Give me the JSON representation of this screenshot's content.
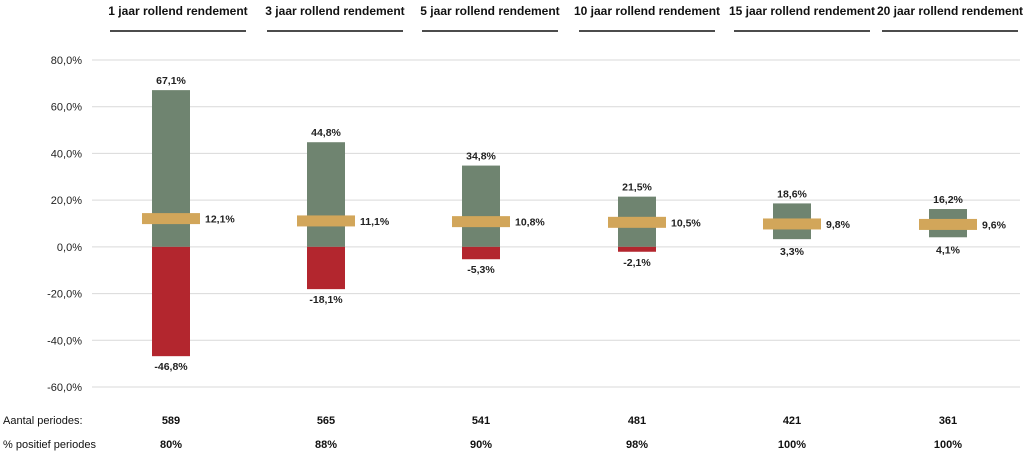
{
  "chart_data": {
    "type": "bar",
    "categories": [
      "1 jaar rollend rendement",
      "3 jaar rollend rendement",
      "5 jaar rollend rendement",
      "10 jaar rollend rendement",
      "15 jaar rollend rendement",
      "20 jaar rollend rendement"
    ],
    "series": [
      {
        "values": [
          67.1,
          44.8,
          34.8,
          21.5,
          18.6,
          16.2
        ],
        "labels": [
          "67,1%",
          "44,8%",
          "34,8%",
          "21,5%",
          "18,6%",
          "16,2%"
        ]
      },
      {
        "values": [
          -46.8,
          -18.1,
          -5.3,
          -2.1,
          3.3,
          4.1
        ],
        "labels": [
          "-46,8%",
          "-18,1%",
          "-5,3%",
          "-2,1%",
          "3,3%",
          "4,1%"
        ]
      },
      {
        "values": [
          12.1,
          11.1,
          10.8,
          10.5,
          9.8,
          9.6
        ],
        "labels": [
          "12,1%",
          "11,1%",
          "10,8%",
          "10,5%",
          "9,8%",
          "9,6%"
        ]
      }
    ],
    "ylim": [
      -60,
      80
    ],
    "yticks": [
      80,
      60,
      40,
      20,
      0,
      -20,
      -40,
      -60
    ],
    "ytick_labels": [
      "80,0%",
      "60,0%",
      "40,0%",
      "20,0%",
      "0,0%",
      "-20,0%",
      "-40,0%",
      "-60,0%"
    ],
    "grid": true,
    "colors": {
      "positive": "#6f8470",
      "negative": "#b3262e",
      "average": "#d2a65a",
      "grid": "#d9d9d9"
    }
  },
  "footer": {
    "rows": [
      {
        "label": "Aantal periodes:",
        "values": [
          "589",
          "565",
          "541",
          "481",
          "421",
          "361"
        ]
      },
      {
        "label": "% positief periodes",
        "values": [
          "80%",
          "88%",
          "90%",
          "98%",
          "100%",
          "100%"
        ]
      }
    ]
  }
}
